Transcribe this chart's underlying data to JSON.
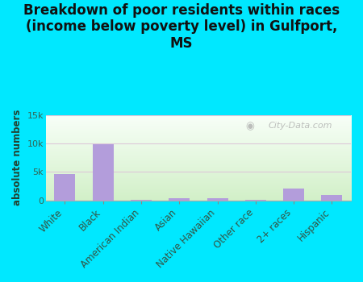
{
  "title": "Breakdown of poor residents within races\n(income below poverty level) in Gulfport,\nMS",
  "categories": [
    "White",
    "Black",
    "American Indian",
    "Asian",
    "Native Hawaiian",
    "Other race",
    "2+ races",
    "Hispanic"
  ],
  "values": [
    4600,
    9900,
    50,
    400,
    350,
    50,
    2000,
    900
  ],
  "bar_color": "#b39ddb",
  "ylabel": "absolute numbers",
  "ylim": [
    0,
    15000
  ],
  "ytick_vals": [
    0,
    5000,
    10000,
    15000
  ],
  "ytick_labels": [
    "0",
    "5k",
    "10k",
    "15k"
  ],
  "bg_outer": "#00e8ff",
  "bg_plot_top": "#f5fff5",
  "bg_plot_bottom": "#d8f0d0",
  "grid_color": "#ddc8d8",
  "watermark": "City-Data.com",
  "title_fontsize": 12,
  "label_fontsize": 8.5,
  "tick_label_fontsize": 8
}
